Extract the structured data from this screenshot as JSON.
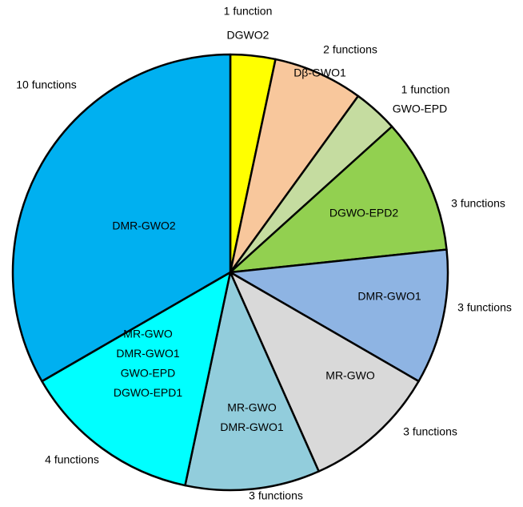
{
  "chart_data": {
    "type": "pie",
    "categories": [
      [
        "DGWO2"
      ],
      [
        "Dβ-GWO1"
      ],
      [
        "GWO-EPD"
      ],
      [
        "DGWO-EPD2"
      ],
      [
        "DMR-GWO1"
      ],
      [
        "MR-GWO"
      ],
      [
        "MR-GWO",
        "DMR-GWO1"
      ],
      [
        "MR-GWO",
        "DMR-GWO1",
        "GWO-EPD",
        "DGWO-EPD1"
      ],
      [
        "DMR-GWO2"
      ]
    ],
    "values": [
      1,
      2,
      1,
      3,
      3,
      3,
      3,
      4,
      10
    ],
    "value_labels": [
      "1 function",
      "2 functions",
      "1 function",
      "3 functions",
      "3 functions",
      "3 functions",
      "3 functions",
      "4 functions",
      "10 functions"
    ],
    "colors": [
      "#ffff00",
      "#f8c79c",
      "#c5dca0",
      "#92d050",
      "#8eb4e3",
      "#d9d9d9",
      "#92cddc",
      "#00ffff",
      "#00b0f0"
    ]
  }
}
